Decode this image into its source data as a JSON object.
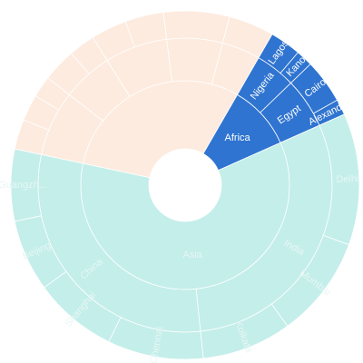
{
  "chart_data": {
    "type": "sunburst",
    "title": "",
    "highlighted": "Africa",
    "colors": {
      "Africa": "#2f74d0",
      "Asia": "#c4eeea",
      "other": "#fdebdf",
      "label_active": "#ffffff",
      "label_faded": "#e6f7f5"
    },
    "hierarchy": [
      {
        "name": "",
        "group": "other",
        "value": 270,
        "faded": true,
        "children": [
          {
            "name": "",
            "value": 65,
            "children": [
              {
                "name": "",
                "value": 25
              },
              {
                "name": "",
                "value": 22
              },
              {
                "name": "",
                "value": 18
              }
            ]
          },
          {
            "name": "",
            "value": 50,
            "children": [
              {
                "name": "",
                "value": 28
              },
              {
                "name": "",
                "value": 22
              }
            ]
          },
          {
            "name": "",
            "value": 62,
            "children": [
              {
                "name": "",
                "value": 30
              },
              {
                "name": "",
                "value": 32
              }
            ]
          },
          {
            "name": "",
            "value": 55,
            "children": [
              {
                "name": "",
                "value": 55
              }
            ]
          },
          {
            "name": "",
            "value": 38,
            "children": [
              {
                "name": "",
                "value": 38
              }
            ]
          }
        ]
      },
      {
        "name": "Africa",
        "group": "Africa",
        "value": 90,
        "faded": false,
        "children": [
          {
            "name": "Nigeria",
            "value": 40,
            "children": [
              {
                "name": "Lagos",
                "value": 26
              },
              {
                "name": "Kano",
                "value": 14
              }
            ]
          },
          {
            "name": "Egypt",
            "value": 50,
            "children": [
              {
                "name": "Cairo",
                "value": 37
              },
              {
                "name": "Alexandr...",
                "value": 13
              }
            ]
          }
        ]
      },
      {
        "name": "Asia",
        "group": "Asia",
        "value": 540,
        "faded": true,
        "children": [
          {
            "name": "India",
            "value": 270,
            "children": [
              {
                "name": "Delhi",
                "value": 110
              },
              {
                "name": "Mumbai",
                "value": 85
              },
              {
                "name": "Kolkata",
                "value": 75
              }
            ]
          },
          {
            "name": "China",
            "value": 270,
            "children": [
              {
                "name": "Chennai",
                "value": 80
              },
              {
                "name": "Shanghai",
                "value": 70
              },
              {
                "name": "Beijing",
                "value": 60
              },
              {
                "name": "Guangzh...",
                "value": 60
              }
            ]
          }
        ]
      }
    ]
  }
}
